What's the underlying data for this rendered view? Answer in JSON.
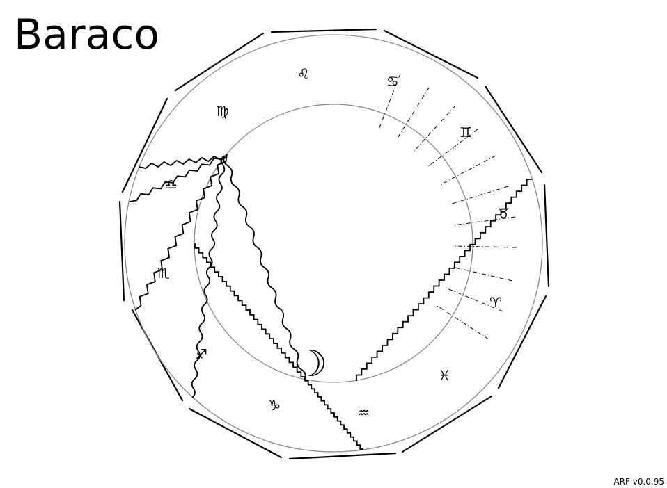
{
  "title": "Baraco",
  "version": "ARF v0.0.95",
  "colors": {
    "ink": "#000000",
    "circle": "#888888",
    "background": "#ffffff"
  },
  "signs": [
    {
      "name": "leo",
      "glyph": "♌"
    },
    {
      "name": "cancer",
      "glyph": "♋"
    },
    {
      "name": "gemini",
      "glyph": "♊"
    },
    {
      "name": "taurus",
      "glyph": "♉"
    },
    {
      "name": "aries",
      "glyph": "♈"
    },
    {
      "name": "pisces",
      "glyph": "♓"
    },
    {
      "name": "aquarius",
      "glyph": "♒"
    },
    {
      "name": "capricorn",
      "glyph": "♑"
    },
    {
      "name": "sagittarius",
      "glyph": "♐"
    },
    {
      "name": "scorpio",
      "glyph": "♏"
    },
    {
      "name": "libra",
      "glyph": "♎"
    },
    {
      "name": "virgo",
      "glyph": "♍"
    }
  ],
  "moon": {
    "name": "moon",
    "glyph": "☽"
  }
}
